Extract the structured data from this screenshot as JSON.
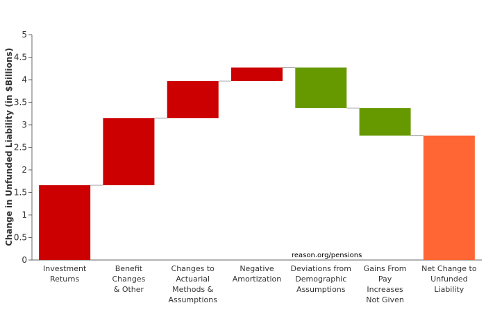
{
  "chart_data": {
    "type": "waterfall",
    "ylabel": "Change in Unfunded Liability (in $Billions)",
    "ylim": [
      0,
      5
    ],
    "yticks": [
      "0",
      "0.5",
      "1",
      "1.5",
      "2",
      "2.5",
      "3",
      "3.5",
      "4",
      "4.5",
      "5"
    ],
    "grid": false,
    "source_note": "reason.org/pensions",
    "colors": {
      "increase": "#cc0000",
      "decrease": "#669900",
      "total": "#ff6633",
      "connector": "#aaaaaa"
    },
    "steps": [
      {
        "label": [
          "Investment",
          "Returns"
        ],
        "value": 1.66,
        "kind": "increase"
      },
      {
        "label": [
          "Benefit",
          "Changes",
          "& Other"
        ],
        "value": 1.49,
        "kind": "increase"
      },
      {
        "label": [
          "Changes to",
          "Actuarial",
          "Methods &",
          "Assumptions"
        ],
        "value": 0.82,
        "kind": "increase"
      },
      {
        "label": [
          "Negative",
          "Amortization"
        ],
        "value": 0.3,
        "kind": "increase"
      },
      {
        "label": [
          "Deviations from",
          "Demographic",
          "Assumptions"
        ],
        "value": -0.9,
        "kind": "decrease"
      },
      {
        "label": [
          "Gains From",
          "Pay",
          "Increases",
          "Not Given"
        ],
        "value": -0.61,
        "kind": "decrease"
      },
      {
        "label": [
          "Net Change to",
          "Unfunded",
          "Liability"
        ],
        "value": 2.76,
        "kind": "total"
      }
    ]
  }
}
